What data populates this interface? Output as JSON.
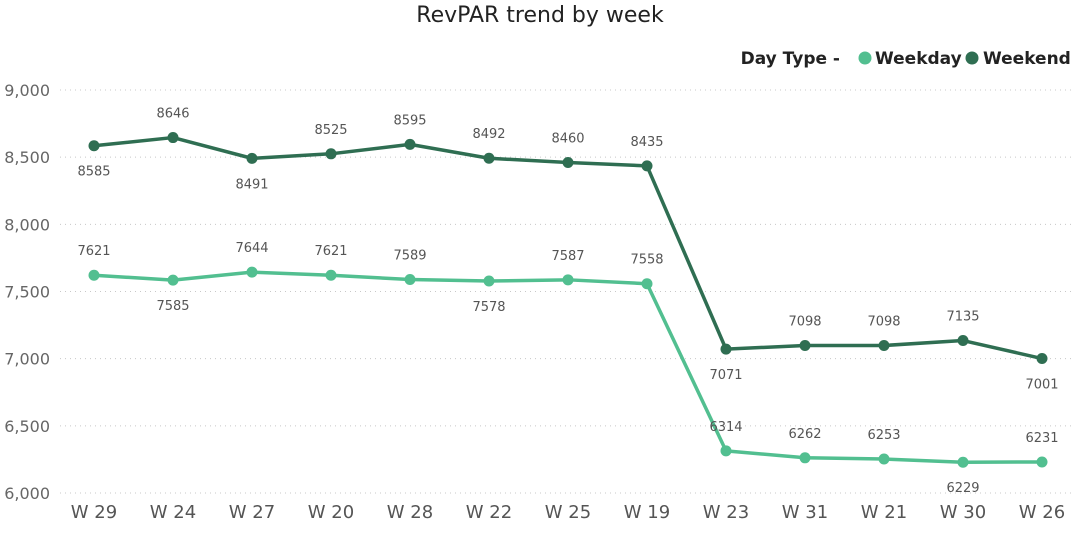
{
  "chart_data": {
    "type": "line",
    "title": "RevPAR trend by week",
    "xlabel": "",
    "ylabel": "",
    "ylim": [
      6000,
      9000
    ],
    "y_ticks": [
      "6,000",
      "6,500",
      "7,000",
      "7,500",
      "8,000",
      "8,500",
      "9,000"
    ],
    "grid": true,
    "legend": {
      "title": "Day Type -",
      "position": "top-right"
    },
    "categories": [
      "W 29",
      "W 24",
      "W 27",
      "W 20",
      "W 28",
      "W 22",
      "W 25",
      "W 19",
      "W 23",
      "W 31",
      "W 21",
      "W 30",
      "W 26"
    ],
    "series": [
      {
        "name": "Weekday",
        "color": "#52bf90",
        "values": [
          7621,
          7585,
          7644,
          7621,
          7589,
          7578,
          7587,
          7558,
          6314,
          6262,
          6253,
          6229,
          6231
        ],
        "label_positions": [
          "above",
          "below",
          "above",
          "above",
          "above",
          "below",
          "above",
          "above",
          "above",
          "above",
          "above",
          "below",
          "above"
        ]
      },
      {
        "name": "Weekend",
        "color": "#2f6e52",
        "values": [
          8585,
          8646,
          8491,
          8525,
          8595,
          8492,
          8460,
          8435,
          7071,
          7098,
          7098,
          7135,
          7001
        ],
        "label_positions": [
          "below",
          "above",
          "below",
          "above",
          "above",
          "above",
          "above",
          "above",
          "below",
          "above",
          "above",
          "above",
          "below"
        ]
      }
    ]
  }
}
